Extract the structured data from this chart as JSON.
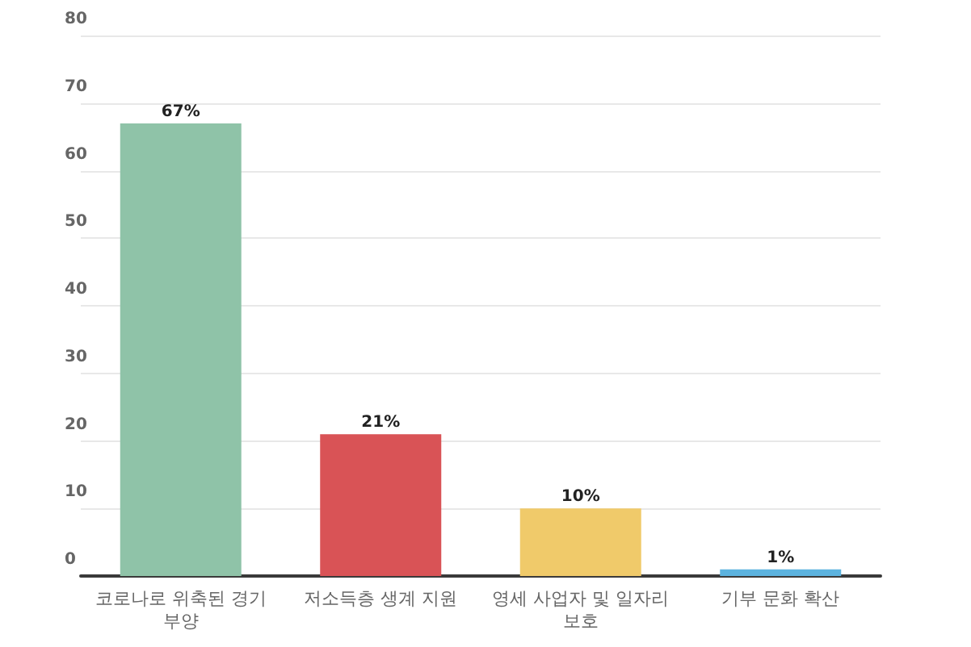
{
  "chart_data": {
    "type": "bar",
    "categories": [
      "코로나로 위축된 경기 부양",
      "저소득층 생계 지원",
      "영세 사업자 및 일자리 보호",
      "기부 문화 확산"
    ],
    "values": [
      67,
      21,
      10,
      1
    ],
    "colors": [
      "#8fc3a8",
      "#d95356",
      "#f0ca6a",
      "#5cb3df"
    ],
    "value_labels": [
      "67%",
      "21%",
      "10%",
      "1%"
    ],
    "ylim": [
      0,
      80
    ],
    "yticks": [
      0,
      10,
      20,
      30,
      40,
      50,
      60,
      70,
      80
    ],
    "grid": "y"
  }
}
